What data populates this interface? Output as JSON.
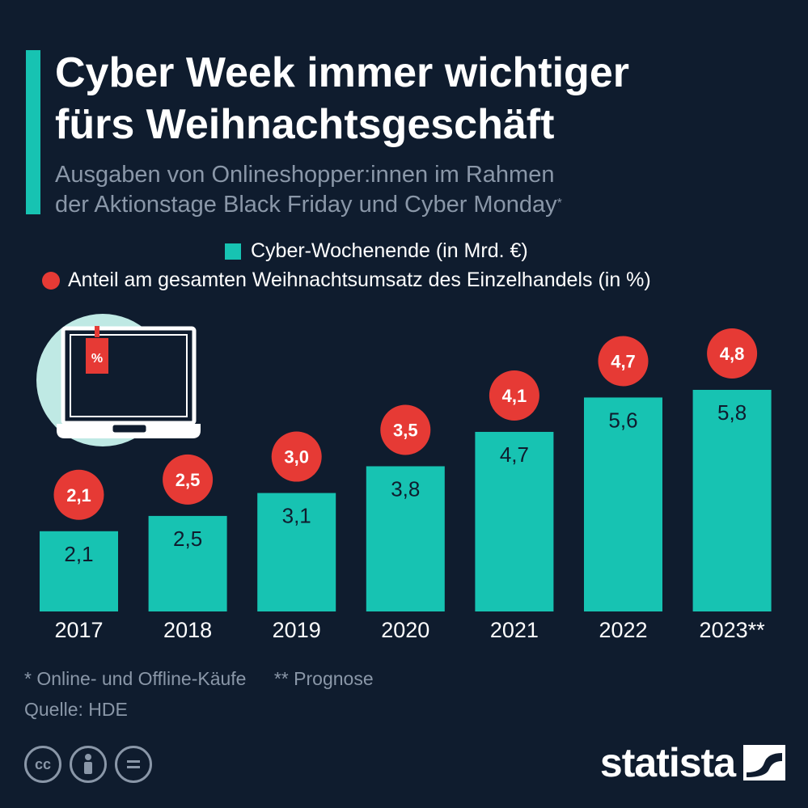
{
  "header": {
    "title_lines": [
      "Cyber Week immer wichtiger",
      "fürs Weihnachtsgeschäft"
    ],
    "subtitle_lines": [
      "Ausgaben von Onlineshopper:innen im Rahmen",
      "der Aktionstage Black Friday und Cyber Monday"
    ],
    "subtitle_mark": "*"
  },
  "legend": {
    "series_1": "Cyber-Wochenende (in Mrd. €)",
    "series_2": "Anteil am gesamten Weihnachtsumsatz des Einzelhandels (in %)"
  },
  "chart_data": {
    "type": "bar",
    "categories": [
      "2017",
      "2018",
      "2019",
      "2020",
      "2021",
      "2022",
      "2023**"
    ],
    "series": [
      {
        "name": "Cyber-Wochenende (in Mrd. €)",
        "values": [
          2.1,
          2.5,
          3.1,
          3.8,
          4.7,
          5.6,
          5.8
        ],
        "labels": [
          "2,1",
          "2,5",
          "3,1",
          "3,8",
          "4,7",
          "5,6",
          "5,8"
        ],
        "color": "#17c3b2"
      },
      {
        "name": "Anteil am gesamten Weihnachtsumsatz des Einzelhandels (in %)",
        "values": [
          2.1,
          2.5,
          3.0,
          3.5,
          4.1,
          4.7,
          4.8
        ],
        "labels": [
          "2,1",
          "2,5",
          "3,0",
          "3,5",
          "4,1",
          "4,7",
          "4,8"
        ],
        "color": "#e63a35"
      }
    ]
  },
  "illustration": {
    "icon": "laptop-icon",
    "tag_text": "%",
    "tag_color": "#e63a35",
    "circle_color": "#bfe9e4"
  },
  "footnotes": [
    "* Online- und Offline-Käufe",
    "** Prognose"
  ],
  "source": "Quelle: HDE",
  "brand": {
    "name": "statista",
    "icon": "statista-logo-icon"
  },
  "license_icons": [
    "cc-icon",
    "attribution-icon",
    "no-derivatives-icon"
  ],
  "colors": {
    "background": "#0f1c2e",
    "accent": "#17c3b2",
    "text": "#ffffff",
    "muted": "#8a97a8",
    "dot": "#e63a35"
  }
}
